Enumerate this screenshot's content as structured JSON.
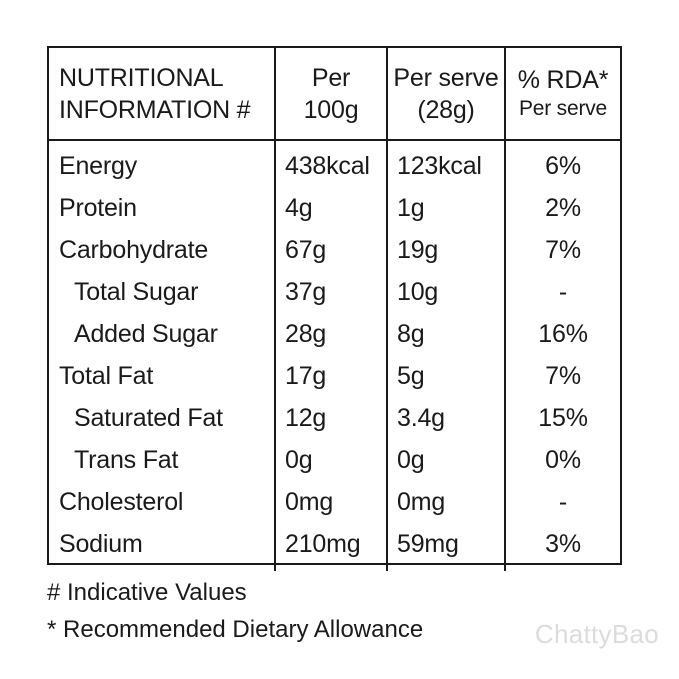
{
  "table": {
    "header": {
      "col1_line1": "NUTRITIONAL",
      "col1_line2": "INFORMATION #",
      "col2_line1": "Per",
      "col2_line2": "100g",
      "col3_line1": "Per serve",
      "col3_line2": "(28g)",
      "col4_line1": "% RDA*",
      "col4_line2": "Per serve"
    },
    "rows": [
      {
        "name": "Energy",
        "per100g": "438kcal",
        "perServe": "123kcal",
        "rda": "6%"
      },
      {
        "name": "Protein",
        "per100g": "4g",
        "perServe": "1g",
        "rda": "2%"
      },
      {
        "name": "Carbohydrate",
        "per100g": "67g",
        "perServe": "19g",
        "rda": "7%"
      },
      {
        "name": "Total Sugar",
        "per100g": "37g",
        "perServe": "10g",
        "rda": "-"
      },
      {
        "name": "Added Sugar",
        "per100g": "28g",
        "perServe": "8g",
        "rda": "16%"
      },
      {
        "name": "Total Fat",
        "per100g": "17g",
        "perServe": "5g",
        "rda": "7%"
      },
      {
        "name": "Saturated Fat",
        "per100g": "12g",
        "perServe": "3.4g",
        "rda": "15%"
      },
      {
        "name": "Trans Fat",
        "per100g": "0g",
        "perServe": "0g",
        "rda": "0%"
      },
      {
        "name": "Cholesterol",
        "per100g": "0mg",
        "perServe": "0mg",
        "rda": "-"
      },
      {
        "name": "Sodium",
        "per100g": "210mg",
        "perServe": "59mg",
        "rda": "3%"
      }
    ]
  },
  "footnotes": {
    "indicative": "# Indicative Values",
    "rda": "* Recommended Dietary Allowance"
  },
  "watermark": "ChattyBao",
  "colors": {
    "text": "#1a1a1a",
    "border": "#1a1a1a",
    "watermark": "#dcdcdc",
    "background": "#ffffff"
  }
}
